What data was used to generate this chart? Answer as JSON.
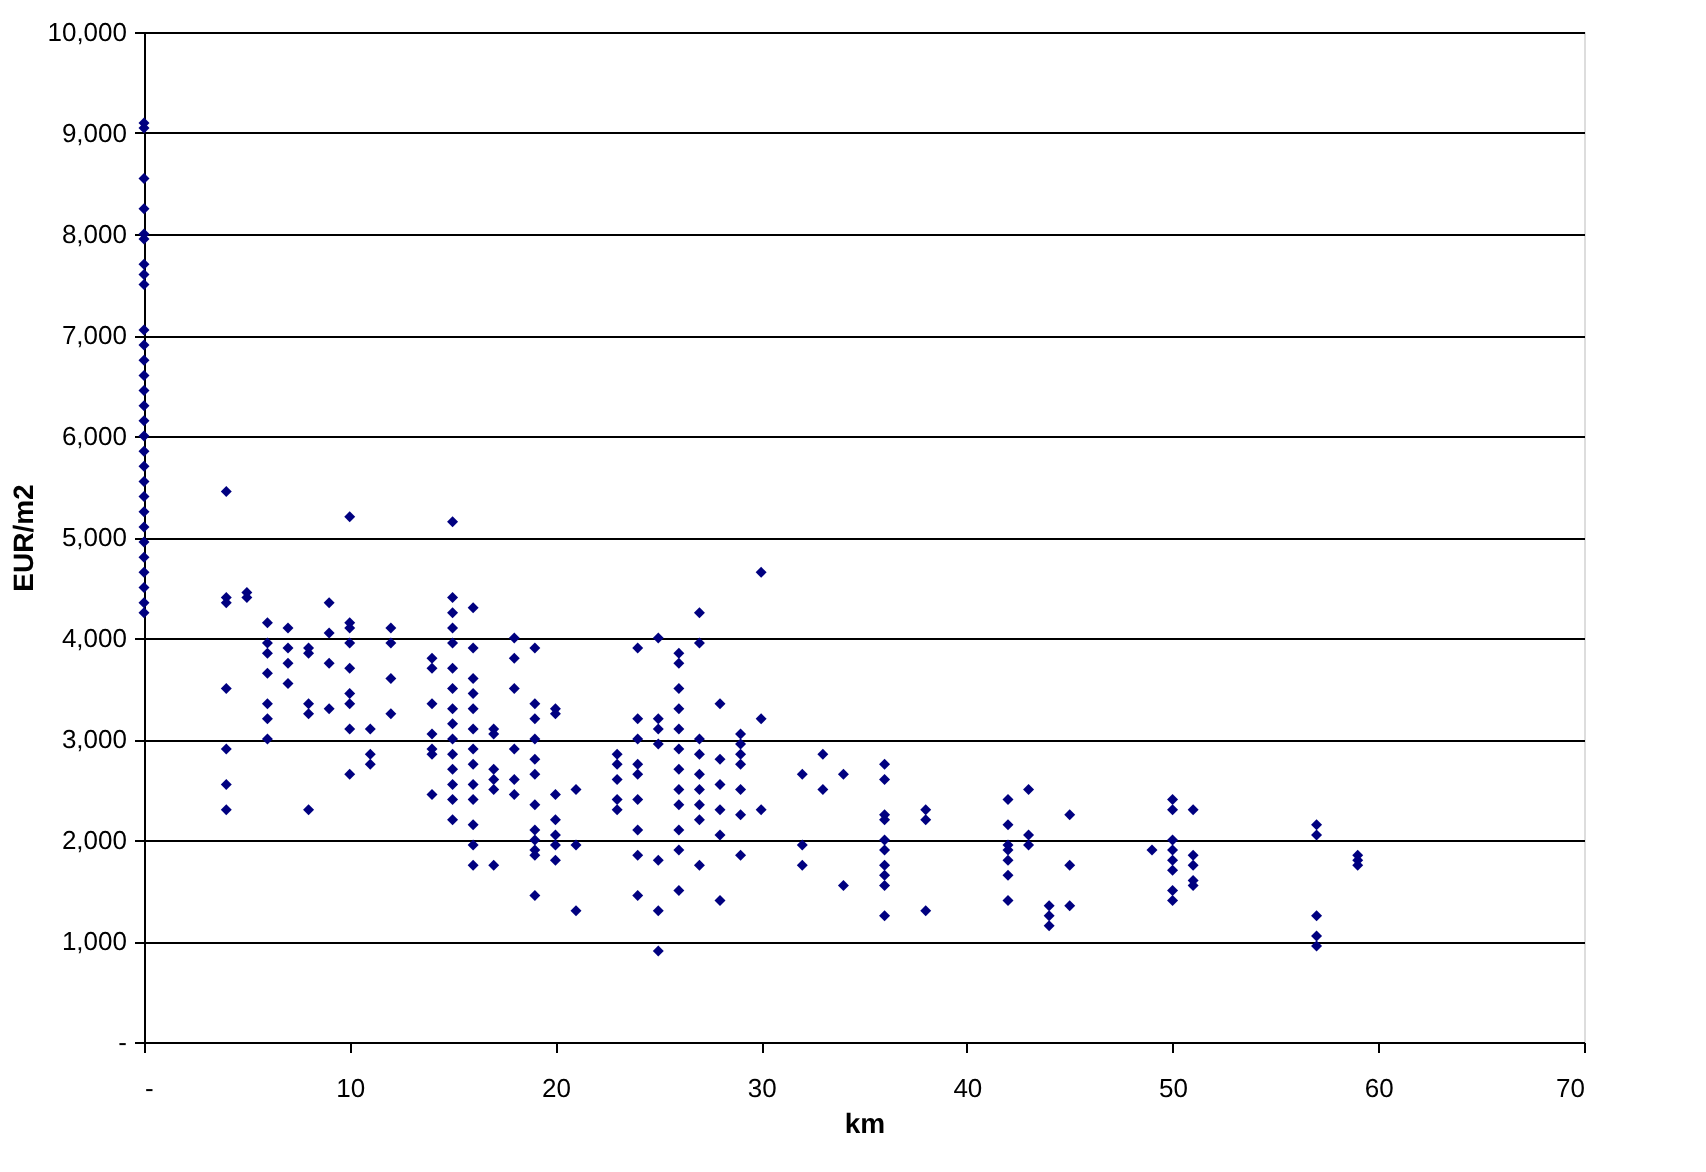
{
  "chart_data": {
    "type": "scatter",
    "xlabel": "km",
    "ylabel": "EUR/m2",
    "xlim": [
      0,
      70
    ],
    "xticks": [
      {
        "value": 0,
        "label": "-"
      },
      10,
      20,
      30,
      40,
      50,
      60,
      70
    ],
    "ylim": [
      0,
      10000
    ],
    "yticks": [
      {
        "value": 0,
        "label": "-"
      },
      {
        "value": 1000,
        "label": "1,000"
      },
      {
        "value": 2000,
        "label": "2,000"
      },
      {
        "value": 3000,
        "label": "3,000"
      },
      {
        "value": 4000,
        "label": "4,000"
      },
      {
        "value": 5000,
        "label": "5,000"
      },
      {
        "value": 6000,
        "label": "6,000"
      },
      {
        "value": 7000,
        "label": "7,000"
      },
      {
        "value": 8000,
        "label": "8,000"
      },
      {
        "value": 9000,
        "label": "9,000"
      },
      {
        "value": 10000,
        "label": "10,000"
      }
    ],
    "grid": "y",
    "marker": "diamond",
    "series": [
      {
        "color": "#000080",
        "x": [
          0,
          0,
          0,
          0,
          0,
          0,
          0,
          0,
          0,
          0,
          0,
          0,
          0,
          0,
          0,
          0,
          0,
          0,
          0,
          0,
          0,
          0,
          0,
          0,
          0,
          0,
          0,
          0,
          0,
          4,
          4,
          4,
          4,
          4,
          4,
          4,
          5,
          5,
          6,
          6,
          6,
          6,
          6,
          6,
          6,
          7,
          7,
          7,
          7,
          8,
          8,
          8,
          8,
          8,
          9,
          9,
          9,
          9,
          10,
          10,
          10,
          10,
          10,
          10,
          10,
          10,
          10,
          11,
          11,
          11,
          12,
          12,
          12,
          12,
          14,
          14,
          14,
          14,
          14,
          14,
          14,
          15,
          15,
          15,
          15,
          15,
          15,
          15,
          15,
          15,
          15,
          15,
          15,
          15,
          15,
          15,
          16,
          16,
          16,
          16,
          16,
          16,
          16,
          16,
          16,
          16,
          16,
          16,
          16,
          17,
          17,
          17,
          17,
          17,
          17,
          18,
          18,
          18,
          18,
          18,
          18,
          19,
          19,
          19,
          19,
          19,
          19,
          19,
          19,
          19,
          19,
          19,
          19,
          20,
          20,
          20,
          20,
          20,
          20,
          20,
          21,
          21,
          21,
          23,
          23,
          23,
          23,
          23,
          24,
          24,
          24,
          24,
          24,
          24,
          24,
          24,
          24,
          25,
          25,
          25,
          25,
          25,
          25,
          25,
          26,
          26,
          26,
          26,
          26,
          26,
          26,
          26,
          26,
          26,
          26,
          26,
          27,
          27,
          27,
          27,
          27,
          27,
          27,
          27,
          27,
          28,
          28,
          28,
          28,
          28,
          28,
          29,
          29,
          29,
          29,
          29,
          29,
          29,
          30,
          30,
          30,
          32,
          32,
          32,
          33,
          33,
          34,
          34,
          36,
          36,
          36,
          36,
          36,
          36,
          36,
          36,
          36,
          36,
          38,
          38,
          38,
          42,
          42,
          42,
          42,
          42,
          42,
          42,
          43,
          43,
          43,
          44,
          44,
          44,
          45,
          45,
          45,
          49,
          50,
          50,
          50,
          50,
          50,
          50,
          50,
          50,
          51,
          51,
          51,
          51,
          51,
          57,
          57,
          57,
          57,
          57,
          59,
          59,
          59
        ],
        "values": [
          9100,
          9050,
          8550,
          8250,
          8000,
          7950,
          7700,
          7600,
          7500,
          7050,
          6900,
          6750,
          6600,
          6450,
          6300,
          6150,
          6000,
          5850,
          5700,
          5550,
          5400,
          5250,
          5100,
          4950,
          4800,
          4650,
          4500,
          4350,
          4250,
          5450,
          4400,
          4350,
          3500,
          2900,
          2550,
          2300,
          4450,
          4400,
          4150,
          3950,
          3850,
          3650,
          3350,
          3200,
          3000,
          4100,
          3900,
          3750,
          3550,
          3900,
          3850,
          3350,
          3250,
          2300,
          4350,
          4050,
          3750,
          3300,
          5200,
          4150,
          4100,
          3950,
          3700,
          3450,
          3350,
          3100,
          2650,
          3100,
          2850,
          2750,
          4100,
          3950,
          3600,
          3250,
          3800,
          3700,
          3350,
          3050,
          2900,
          2850,
          2450,
          5150,
          4400,
          4250,
          4100,
          3950,
          3700,
          3500,
          3300,
          3150,
          3000,
          2850,
          2700,
          2550,
          2400,
          2200,
          4300,
          3900,
          3600,
          3450,
          3300,
          3100,
          2900,
          2750,
          2550,
          2400,
          2150,
          1950,
          1750,
          3100,
          3050,
          2700,
          2600,
          2500,
          1750,
          4000,
          3800,
          3500,
          2900,
          2600,
          2450,
          3900,
          3350,
          3200,
          3000,
          2800,
          2650,
          2350,
          2100,
          2000,
          1900,
          1850,
          1450,
          3300,
          3250,
          2450,
          2200,
          2050,
          1950,
          1800,
          2500,
          1950,
          1300,
          2850,
          2750,
          2600,
          2400,
          2300,
          3900,
          3200,
          3000,
          2750,
          2650,
          2400,
          2100,
          1850,
          1450,
          4000,
          3200,
          3100,
          2950,
          1800,
          1300,
          900,
          3850,
          3750,
          3500,
          3300,
          3100,
          2900,
          2700,
          2500,
          2350,
          2100,
          1900,
          1500,
          4250,
          3950,
          3000,
          2850,
          2650,
          2500,
          2350,
          2200,
          1750,
          3350,
          2800,
          2550,
          2300,
          2050,
          1400,
          3050,
          2950,
          2850,
          2750,
          2500,
          2250,
          1850,
          4650,
          3200,
          2300,
          2650,
          1950,
          1750,
          2850,
          2500,
          2650,
          1550,
          2750,
          2600,
          2250,
          2200,
          2000,
          1900,
          1750,
          1650,
          1550,
          1250,
          2300,
          2200,
          1300,
          2400,
          2150,
          1950,
          1900,
          1800,
          1650,
          1400,
          2500,
          2050,
          1950,
          1350,
          1250,
          1150,
          2250,
          1750,
          1350,
          1900,
          2400,
          2300,
          2000,
          1900,
          1800,
          1700,
          1500,
          1400,
          2300,
          1850,
          1750,
          1600,
          1550,
          2150,
          2050,
          1250,
          1050,
          950,
          1850,
          1800,
          1750
        ]
      }
    ]
  }
}
